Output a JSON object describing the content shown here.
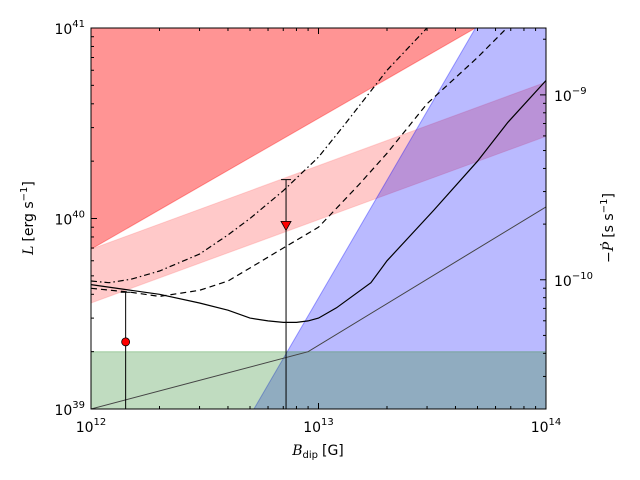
{
  "chart_data": {
    "type": "line",
    "xlabel": "B_dip [G]",
    "xlabel_main": "B",
    "xlabel_sub": "dip",
    "xlabel_unit": "[G]",
    "ylabel_left": "L [erg s^-1]",
    "ylabel_left_main": "L",
    "ylabel_left_unit": "[erg s",
    "ylabel_left_exp": "−1",
    "ylabel_left_close": "]",
    "ylabel_right": "-Pdot [s s^-1]",
    "ylabel_right_main": "−Ṗ",
    "ylabel_right_unit": "[s s",
    "ylabel_right_exp": "−1",
    "ylabel_right_close": "]",
    "x_scale": "log",
    "y_scale": "log",
    "xlim": [
      1000000000000.0,
      100000000000000.0
    ],
    "ylim_left": [
      1e+39,
      1e+41
    ],
    "ylim_right": [
      2e-11,
      2.3e-09
    ],
    "x_ticks": [
      {
        "value": 1000000000000.0,
        "base": "10",
        "exp": "12"
      },
      {
        "value": 10000000000000.0,
        "base": "10",
        "exp": "13"
      },
      {
        "value": 100000000000000.0,
        "base": "10",
        "exp": "14"
      }
    ],
    "y_ticks_left": [
      {
        "value": 1e+39,
        "base": "10",
        "exp": "39"
      },
      {
        "value": 1e+40,
        "base": "10",
        "exp": "40"
      },
      {
        "value": 1e+41,
        "base": "10",
        "exp": "41"
      }
    ],
    "y_ticks_right": [
      {
        "value": 1e-10,
        "base": "10",
        "exp": "−10"
      },
      {
        "value": 1e-09,
        "base": "10",
        "exp": "−9"
      }
    ],
    "regions": [
      {
        "name": "red-region",
        "color": "#ff0000",
        "opacity": 0.42,
        "points": [
          [
            1000000000000.0,
            6.9e+39
          ],
          [
            49000000000000.0,
            1e+41
          ],
          [
            1000000000000.0,
            1e+41
          ]
        ]
      },
      {
        "name": "pink-region",
        "color": "#ff8888",
        "opacity": 0.45,
        "points": [
          [
            1000000000000.0,
            3.6e+39
          ],
          [
            100000000000000.0,
            2.7e+40
          ],
          [
            100000000000000.0,
            5.2e+40
          ],
          [
            1000000000000.0,
            6.9e+39
          ]
        ]
      },
      {
        "name": "blue-region",
        "color": "#0000ff",
        "opacity": 0.27,
        "points": [
          [
            5200000000000.0,
            1e+39
          ],
          [
            49000000000000.0,
            1e+41
          ],
          [
            100000000000000.0,
            1e+41
          ],
          [
            100000000000000.0,
            1e+39
          ]
        ]
      },
      {
        "name": "green-region",
        "color": "#2e8b2e",
        "opacity": 0.3,
        "points": [
          [
            1000000000000.0,
            1e+39
          ],
          [
            100000000000000.0,
            1e+39
          ],
          [
            100000000000000.0,
            2e+39
          ],
          [
            1000000000000.0,
            2e+39
          ]
        ]
      }
    ],
    "series": [
      {
        "style": "solid-thin",
        "color": "#444444",
        "x": [
          1000000000000.0,
          9000000000000.0,
          100000000000000.0
        ],
        "y": [
          1e+39,
          2e+39,
          1.15e+40
        ]
      },
      {
        "style": "solid",
        "color": "#000000",
        "x": [
          1000000000000.0,
          1500000000000.0,
          2000000000000.0,
          3000000000000.0,
          4000000000000.0,
          5000000000000.0,
          6000000000000.0,
          7000000000000.0,
          8000000000000.0,
          9000000000000.0,
          10000000000000.0,
          12000000000000.0,
          17000000000000.0,
          20000000000000.0,
          32000000000000.0,
          50000000000000.0,
          68000000000000.0,
          100000000000000.0
        ],
        "y": [
          4.5e+39,
          4.2e+39,
          4e+39,
          3.6e+39,
          3.3e+39,
          3e+39,
          2.9e+39,
          2.85e+39,
          2.85e+39,
          2.9e+39,
          3e+39,
          3.4e+39,
          4.6e+39,
          6e+39,
          1.1e+40,
          2e+40,
          3.2e+40,
          5.3e+40
        ]
      },
      {
        "style": "dashed",
        "color": "#000000",
        "x": [
          1000000000000.0,
          1500000000000.0,
          2000000000000.0,
          3000000000000.0,
          4000000000000.0,
          5000000000000.0,
          7000000000000.0,
          10000000000000.0,
          15000000000000.0,
          20000000000000.0,
          30000000000000.0,
          50000000000000.0,
          70000000000000.0
        ],
        "y": [
          4.3e+39,
          4.1e+39,
          3.9e+39,
          4.2e+39,
          4.7e+39,
          5.5e+39,
          7e+39,
          9e+39,
          1.5e+40,
          2.2e+40,
          4e+40,
          7e+40,
          1.05e+41
        ]
      },
      {
        "style": "dashdot",
        "color": "#000000",
        "x": [
          1000000000000.0,
          1200000000000.0,
          1500000000000.0,
          2000000000000.0,
          3000000000000.0,
          4000000000000.0,
          5000000000000.0,
          7000000000000.0,
          10000000000000.0,
          13000000000000.0,
          20000000000000.0,
          30000000000000.0
        ],
        "y": [
          4.7e+39,
          4.6e+39,
          4.8e+39,
          5.3e+39,
          6.5e+39,
          8.2e+39,
          1e+40,
          1.4e+40,
          2.1e+40,
          3.1e+40,
          6e+40,
          1e+41
        ]
      }
    ],
    "markers": [
      {
        "name": "circle-marker",
        "shape": "circle",
        "color": "#ff0000",
        "x": 1420000000000.0,
        "y": 2.25e+39,
        "line_top": 4.1e+39
      },
      {
        "name": "triangle-marker",
        "shape": "triangle-down",
        "color": "#ff0000",
        "x": 7200000000000.0,
        "y": 9.2e+39,
        "line_top": 1.6e+40
      }
    ],
    "grid": false,
    "legend": "none"
  }
}
